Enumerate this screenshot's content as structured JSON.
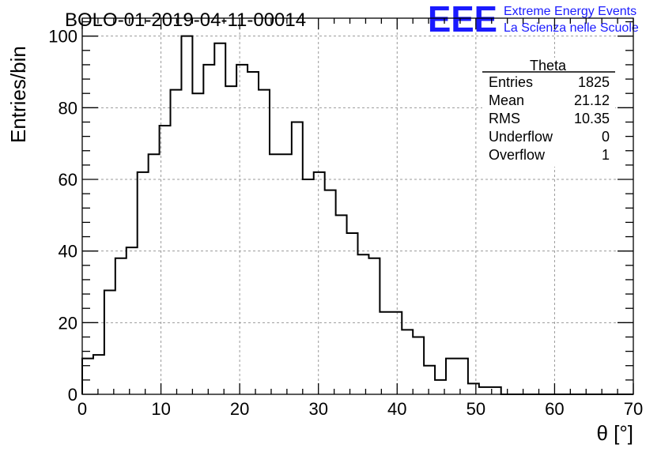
{
  "title": "BOLO-01-2019-04-11-00014",
  "logo": {
    "mark": "EEE",
    "line1": "Extreme Energy Events",
    "line2": "La Scienza nelle Scuole",
    "color": "#1a1aff"
  },
  "stats": {
    "name": "Theta",
    "rows": [
      {
        "label": "Entries",
        "value": "1825"
      },
      {
        "label": "Mean",
        "value": "21.12"
      },
      {
        "label": "RMS",
        "value": "10.35"
      },
      {
        "label": "Underflow",
        "value": "0"
      },
      {
        "label": "Overflow",
        "value": "1"
      }
    ]
  },
  "chart_data": {
    "type": "bar",
    "title": "BOLO-01-2019-04-11-00014",
    "xlabel": "θ [°]",
    "ylabel": "Entries/bin",
    "xlim": [
      0,
      70
    ],
    "ylim": [
      0,
      105
    ],
    "grid": true,
    "bin_width": 1.4,
    "x_ticks": [
      0,
      10,
      20,
      30,
      40,
      50,
      60,
      70
    ],
    "y_ticks": [
      0,
      20,
      40,
      60,
      80,
      100
    ],
    "values": [
      10,
      11,
      29,
      38,
      41,
      62,
      67,
      75,
      85,
      100,
      84,
      92,
      98,
      86,
      92,
      90,
      85,
      67,
      67,
      76,
      60,
      62,
      57,
      50,
      45,
      39,
      38,
      23,
      23,
      18,
      16,
      8,
      4,
      10,
      10,
      3,
      2,
      2,
      0,
      0,
      0,
      0,
      0,
      0,
      0,
      0,
      0,
      0,
      0,
      0
    ]
  }
}
